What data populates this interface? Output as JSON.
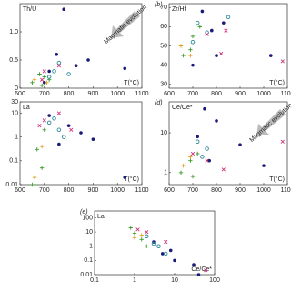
{
  "chart_data": [
    {
      "type": "scatter",
      "ylabel": "Th/U",
      "xlabel": "T(°C)",
      "annotation": "Magmatic evolution",
      "xlim": [
        600,
        1100
      ],
      "xticks": [
        600,
        700,
        800,
        900,
        1000,
        1100
      ],
      "ylim": [
        0,
        1.5
      ],
      "yticks": [
        0,
        0.5,
        {
          "value": 1,
          "label": "1.0"
        }
      ],
      "series": [
        {
          "color": "#3a9a2a",
          "marker": "plus",
          "x": [
            650,
            680,
            700,
            720,
            690
          ],
          "values": [
            0.1,
            0.25,
            0.2,
            0.15,
            0.05
          ]
        },
        {
          "color": "#1a1a7a",
          "marker": "dot",
          "x": [
            780,
            750,
            830,
            1030,
            880,
            720,
            700
          ],
          "values": [
            1.4,
            0.6,
            0.4,
            0.35,
            0.5,
            0.3,
            0.1
          ]
        },
        {
          "color": "#2a8a9a",
          "marker": "circle",
          "x": [
            760,
            720,
            740,
            800
          ],
          "values": [
            0.45,
            0.2,
            0.3,
            0.25
          ]
        },
        {
          "color": "#d0307a",
          "marker": "x",
          "x": [
            700,
            760,
            690
          ],
          "values": [
            0.3,
            0.4,
            0.15
          ]
        },
        {
          "color": "#e0a020",
          "marker": "plus",
          "x": [
            660,
            710
          ],
          "values": [
            0.15,
            0.1
          ]
        }
      ]
    },
    {
      "type": "scatter",
      "panel": "(b)",
      "ylabel": "Zr/Hf",
      "xlabel": "T(°C)",
      "xlim": [
        600,
        1100
      ],
      "xticks": [
        600,
        700,
        800,
        900,
        1000,
        1100
      ],
      "ylim": [
        28,
        72
      ],
      "yticks": [
        30,
        40,
        50,
        60,
        70
      ],
      "series": [
        {
          "color": "#3a9a2a",
          "marker": "plus",
          "x": [
            660,
            700,
            690,
            730
          ],
          "values": [
            45,
            55,
            48,
            60
          ]
        },
        {
          "color": "#1a1a7a",
          "marker": "dot",
          "x": [
            780,
            800,
            830,
            740,
            700,
            1030
          ],
          "values": [
            58,
            45,
            62,
            68,
            40,
            45
          ]
        },
        {
          "color": "#2a8a9a",
          "marker": "circle",
          "x": [
            720,
            760,
            700,
            850
          ],
          "values": [
            62,
            57,
            52,
            65
          ]
        },
        {
          "color": "#d0307a",
          "marker": "x",
          "x": [
            760,
            840,
            820,
            1080
          ],
          "values": [
            56,
            58,
            46,
            42
          ]
        },
        {
          "color": "#e0a020",
          "marker": "plus",
          "x": [
            650,
            690
          ],
          "values": [
            50,
            45
          ]
        }
      ]
    },
    {
      "type": "scatter",
      "ylabel": "La",
      "xlabel": "T(°C)",
      "yscale": "log",
      "xlim": [
        600,
        1100
      ],
      "xticks": [
        600,
        700,
        800,
        900,
        1000,
        1100
      ],
      "ylim": [
        0.01,
        30
      ],
      "yticks": [
        0.01,
        0.1,
        1,
        10,
        30
      ],
      "series": [
        {
          "color": "#3a9a2a",
          "marker": "plus",
          "x": [
            650,
            670,
            700,
            690
          ],
          "values": [
            0.01,
            0.3,
            2,
            0.05
          ]
        },
        {
          "color": "#1a1a7a",
          "marker": "dot",
          "x": [
            800,
            850,
            900,
            1030,
            760,
            720
          ],
          "values": [
            3,
            1.5,
            0.8,
            0.02,
            0.5,
            8
          ]
        },
        {
          "color": "#2a8a9a",
          "marker": "circle",
          "x": [
            720,
            760,
            740,
            780
          ],
          "values": [
            4,
            2,
            6,
            1
          ]
        },
        {
          "color": "#d0307a",
          "marker": "x",
          "x": [
            700,
            760,
            810,
            680
          ],
          "values": [
            5,
            10,
            2,
            3
          ]
        },
        {
          "color": "#e0a020",
          "marker": "plus",
          "x": [
            660,
            690
          ],
          "values": [
            0.02,
            0.4
          ]
        }
      ]
    },
    {
      "type": "scatter",
      "panel": "(d)",
      "ylabel": "Ce/Ce*",
      "xlabel": "T(°C)",
      "annotation": "Magmatic evolution",
      "yscale": "log",
      "xlim": [
        600,
        1100
      ],
      "xticks": [
        600,
        700,
        800,
        900,
        1000,
        1100
      ],
      "ylim": [
        0.5,
        60
      ],
      "yticks": [
        1,
        10
      ],
      "series": [
        {
          "color": "#3a9a2a",
          "marker": "plus",
          "x": [
            650,
            690,
            720,
            700
          ],
          "values": [
            1,
            2,
            3,
            0.8
          ]
        },
        {
          "color": "#1a1a7a",
          "marker": "dot",
          "x": [
            750,
            800,
            900,
            1000,
            770,
            720
          ],
          "values": [
            40,
            20,
            5,
            1.5,
            2,
            8
          ]
        },
        {
          "color": "#2a8a9a",
          "marker": "circle",
          "x": [
            720,
            760,
            740
          ],
          "values": [
            6,
            4,
            2.5
          ]
        },
        {
          "color": "#d0307a",
          "marker": "x",
          "x": [
            700,
            760,
            1080,
            830
          ],
          "values": [
            3,
            2,
            6,
            1.2
          ]
        },
        {
          "color": "#e0a020",
          "marker": "plus",
          "x": [
            660,
            690
          ],
          "values": [
            1.5,
            2.5
          ]
        }
      ]
    },
    {
      "type": "scatter",
      "panel": "(e)",
      "ylabel": "La",
      "xlabel": "Ce/Ce*",
      "xscale": "log",
      "yscale": "log",
      "xlim": [
        0.1,
        100
      ],
      "xticks": [
        0.1,
        1,
        10,
        100
      ],
      "ylim": [
        0.01,
        300
      ],
      "yticks": [
        0.01,
        0.1,
        1,
        10,
        100
      ],
      "series": [
        {
          "color": "#3a9a2a",
          "marker": "plus",
          "x": [
            0.8,
            1,
            1.5,
            2
          ],
          "values": [
            20,
            8,
            3,
            1
          ]
        },
        {
          "color": "#1a1a7a",
          "marker": "dot",
          "x": [
            3,
            5,
            10,
            30,
            40,
            8
          ],
          "values": [
            2,
            0.3,
            0.1,
            0.05,
            0.01,
            0.5
          ]
        },
        {
          "color": "#2a8a9a",
          "marker": "circle",
          "x": [
            2,
            4,
            6,
            3
          ],
          "values": [
            5,
            1,
            0.3,
            1.5
          ]
        },
        {
          "color": "#d0307a",
          "marker": "x",
          "x": [
            1.2,
            2,
            6,
            60
          ],
          "values": [
            15,
            10,
            2,
            0.02
          ]
        },
        {
          "color": "#e0a020",
          "marker": "plus",
          "x": [
            1,
            1.5
          ],
          "values": [
            4,
            6
          ]
        }
      ]
    }
  ]
}
